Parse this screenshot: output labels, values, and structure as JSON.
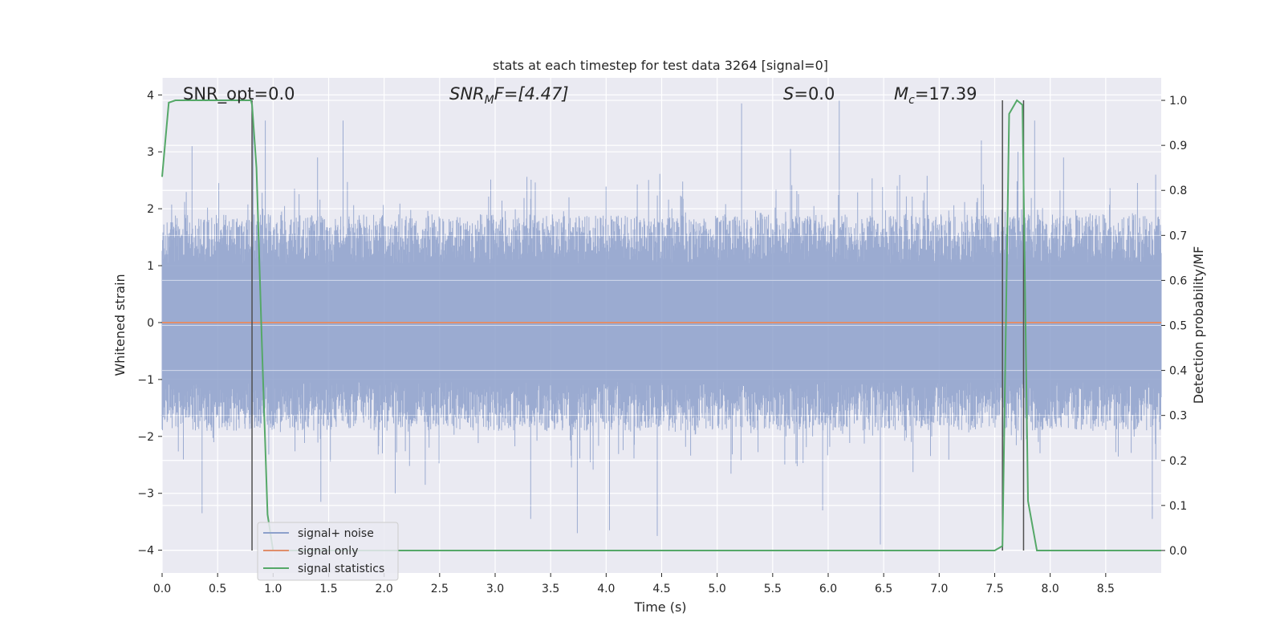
{
  "chart_data": {
    "type": "line",
    "title": "stats at each timestep for test data 3264 [signal=0]",
    "xlabel": "Time (s)",
    "ylabel_left": "Whitened strain",
    "ylabel_right": "Detection probability/MF",
    "xlim": [
      0.0,
      9.0
    ],
    "ylim_left": [
      -4.4,
      4.3
    ],
    "ylim_right": [
      -0.05,
      1.05
    ],
    "x_ticks": [
      0.0,
      0.5,
      1.0,
      1.5,
      2.0,
      2.5,
      3.0,
      3.5,
      4.0,
      4.5,
      5.0,
      5.5,
      6.0,
      6.5,
      7.0,
      7.5,
      8.0,
      8.5
    ],
    "x_tick_labels": [
      "0.0",
      "0.5",
      "1.0",
      "1.5",
      "2.0",
      "2.5",
      "3.0",
      "3.5",
      "4.0",
      "4.5",
      "5.0",
      "5.5",
      "6.0",
      "6.5",
      "7.0",
      "7.5",
      "8.0",
      "8.5"
    ],
    "y_left_ticks": [
      -4,
      -3,
      -2,
      -1,
      0,
      1,
      2,
      3,
      4
    ],
    "y_left_tick_labels": [
      "−4",
      "−3",
      "−2",
      "−1",
      "0",
      "1",
      "2",
      "3",
      "4"
    ],
    "y_right_ticks": [
      0.0,
      0.1,
      0.2,
      0.3,
      0.4,
      0.5,
      0.6,
      0.7,
      0.8,
      0.9,
      1.0
    ],
    "y_right_tick_labels": [
      "0.0",
      "0.1",
      "0.2",
      "0.3",
      "0.4",
      "0.5",
      "0.6",
      "0.7",
      "0.8",
      "0.9",
      "1.0"
    ],
    "annotations": {
      "snr_opt": "SNR_opt=0.0",
      "snr_mf_sym": "SNR",
      "snr_mf_sub": "M",
      "snr_mf_rest": "F=[4.47]",
      "s_sym": "S",
      "s_rest": "=0.0",
      "mc_sym": "M",
      "mc_sub": "c",
      "mc_rest": "=17.39"
    },
    "series": [
      {
        "name": "signal+ noise",
        "color": "#8da0cb",
        "description_type": "dense-noise",
        "envelope": {
          "typical_abs": 1.9,
          "max_abs": 3.95
        },
        "spikes": [
          [
            0.27,
            3.1
          ],
          [
            0.36,
            -3.35
          ],
          [
            0.82,
            3.45
          ],
          [
            0.93,
            3.55
          ],
          [
            1.4,
            2.9
          ],
          [
            1.43,
            -3.15
          ],
          [
            1.63,
            3.55
          ],
          [
            2.1,
            -3.0
          ],
          [
            2.37,
            -2.85
          ],
          [
            3.32,
            -3.45
          ],
          [
            3.74,
            -3.7
          ],
          [
            4.03,
            -3.65
          ],
          [
            4.46,
            -3.75
          ],
          [
            5.22,
            3.85
          ],
          [
            5.66,
            3.05
          ],
          [
            5.95,
            -3.3
          ],
          [
            6.1,
            3.9
          ],
          [
            6.47,
            -3.9
          ],
          [
            7.38,
            3.2
          ],
          [
            7.86,
            3.55
          ],
          [
            7.71,
            3.0
          ],
          [
            8.12,
            2.9
          ],
          [
            8.92,
            -3.45
          ],
          [
            8.95,
            2.6
          ]
        ]
      },
      {
        "name": "signal only",
        "color": "#e08e6b",
        "x": [
          0.0,
          9.0
        ],
        "y": [
          0.0,
          0.0
        ]
      },
      {
        "name": "signal statistics",
        "color": "#55a868",
        "axis": "right",
        "x": [
          0.0,
          0.06,
          0.12,
          0.2,
          0.8,
          0.81,
          0.85,
          0.9,
          0.95,
          1.0,
          2.0,
          3.0,
          4.0,
          5.0,
          5.4,
          5.5,
          5.8,
          6.0,
          7.0,
          7.5,
          7.57,
          7.63,
          7.7,
          7.75,
          7.8,
          7.88,
          8.0,
          9.0
        ],
        "y": [
          0.83,
          0.995,
          1.0,
          1.0,
          1.0,
          0.99,
          0.85,
          0.45,
          0.08,
          0.0,
          0.0,
          0.0,
          0.0,
          0.0,
          0.0,
          0.0,
          0.0,
          0.0,
          0.0,
          0.0,
          0.01,
          0.97,
          1.0,
          0.99,
          0.11,
          0.0,
          0.0,
          0.0
        ]
      }
    ],
    "vertical_lines": [
      {
        "x": 0.81,
        "ymin": 0.0,
        "ymax": 1.0,
        "color": "#505050"
      },
      {
        "x": 7.57,
        "ymin": 0.0,
        "ymax": 1.0,
        "color": "#505050"
      },
      {
        "x": 7.76,
        "ymin": 0.0,
        "ymax": 1.0,
        "color": "#505050"
      }
    ],
    "grid": true,
    "legend_position": "lower-left"
  }
}
